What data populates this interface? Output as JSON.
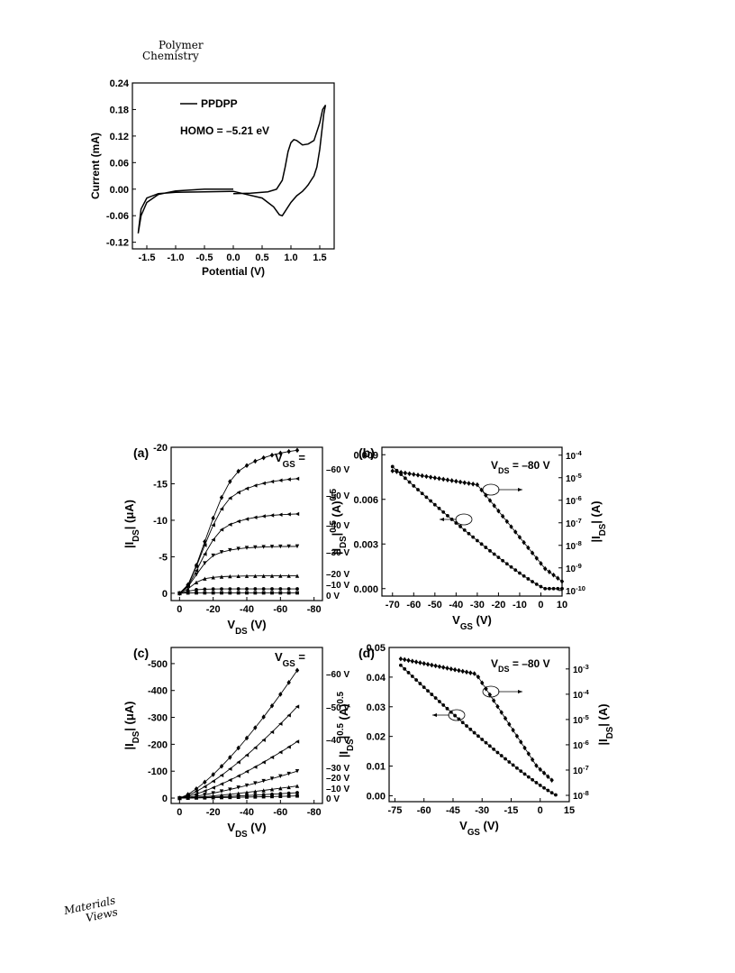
{
  "journal": {
    "line1": "Polymer",
    "line2": "Chemistry"
  },
  "footer_logo": {
    "line1": "Materials",
    "line2": "Views"
  },
  "chart_data": [
    {
      "id": "cv",
      "type": "line",
      "title": "",
      "xlabel": "Potential (V)",
      "ylabel": "Current (mA)",
      "xlim": [
        -1.75,
        1.75
      ],
      "ylim": [
        -0.135,
        0.24
      ],
      "xticks": [
        -1.5,
        -1.0,
        -0.5,
        0.0,
        0.5,
        1.0,
        1.5
      ],
      "xtick_labels": [
        "-1.5",
        "-1.0",
        "-0.5",
        "0.0",
        "0.5",
        "1.0",
        "1.5"
      ],
      "yticks": [
        0.24,
        0.18,
        0.12,
        0.06,
        0.0,
        -0.06,
        -0.12
      ],
      "ytick_labels": [
        "0.24",
        "0.18",
        "0.12",
        "0.06",
        "0.00",
        "-0.06",
        "-0.12"
      ],
      "legend": [
        "PPDPP"
      ],
      "annotation": "HOMO = –5.21 eV",
      "series": [
        {
          "name": "PPDPP",
          "x": [
            0.0,
            0.3,
            0.6,
            0.75,
            0.85,
            0.9,
            0.95,
            1.0,
            1.05,
            1.1,
            1.2,
            1.3,
            1.4,
            1.5,
            1.55,
            1.6,
            1.57,
            1.5,
            1.45,
            1.4,
            1.35,
            1.3,
            1.25,
            1.2,
            1.1,
            1.0,
            0.9,
            0.85,
            0.8,
            0.7,
            0.5,
            0.0,
            -0.5,
            -1.0,
            -1.3,
            -1.5,
            -1.6,
            -1.65,
            -1.6,
            -1.5,
            -1.3,
            -1.0,
            -0.5,
            0.0
          ],
          "y": [
            -0.01,
            -0.009,
            -0.006,
            0.0,
            0.02,
            0.05,
            0.085,
            0.105,
            0.112,
            0.11,
            0.1,
            0.102,
            0.11,
            0.15,
            0.18,
            0.19,
            0.17,
            0.09,
            0.05,
            0.03,
            0.02,
            0.01,
            0.002,
            -0.005,
            -0.015,
            -0.03,
            -0.05,
            -0.06,
            -0.058,
            -0.04,
            -0.02,
            -0.005,
            -0.006,
            -0.007,
            -0.01,
            -0.02,
            -0.045,
            -0.1,
            -0.06,
            -0.03,
            -0.012,
            -0.004,
            0.0,
            0.0
          ]
        }
      ]
    },
    {
      "id": "a",
      "panel": "(a)",
      "type": "line",
      "xlabel": "V_DS (V)",
      "ylabel": "|I_DS| (μA)",
      "xlim": [
        5,
        -85
      ],
      "ylim": [
        1,
        -20
      ],
      "xticks": [
        0,
        -20,
        -40,
        -60,
        -80
      ],
      "yticks": [
        0,
        -5,
        -10,
        -15,
        -20
      ],
      "legend_title": "V_GS =",
      "x": [
        0,
        -5,
        -10,
        -15,
        -20,
        -25,
        -30,
        -35,
        -40,
        -45,
        -50,
        -55,
        -60,
        -65,
        -70
      ],
      "series": [
        {
          "name": "-60 V",
          "isat": -16.9,
          "sat_v": 36
        },
        {
          "name": "-50 V",
          "isat": -13.4,
          "sat_v": 32
        },
        {
          "name": "-40 V",
          "isat": -9.2,
          "sat_v": 28
        },
        {
          "name": "-30 V",
          "isat": -5.4,
          "sat_v": 22
        },
        {
          "name": "-20 V",
          "isat": -2.0,
          "sat_v": 15
        },
        {
          "name": "-10 V",
          "isat": -0.5,
          "sat_v": 10
        },
        {
          "name": "0 V",
          "isat": -0.05,
          "sat_v": 5
        }
      ]
    },
    {
      "id": "b",
      "panel": "(b)",
      "type": "scatter",
      "annotation": "V_DS = –80 V",
      "xlabel": "V_GS (V)",
      "ylabel_left": "|I_DS|^0.5 (A)^0.5",
      "ylabel_right": "|I_DS| (A)",
      "xlim": [
        -75,
        10
      ],
      "ylim_left": [
        -0.0005,
        0.0095
      ],
      "yticks_left": [
        0.0,
        0.003,
        0.006,
        0.009
      ],
      "ytick_labels_left": [
        "0.000",
        "0.003",
        "0.006",
        "0.009"
      ],
      "xticks": [
        -70,
        -60,
        -50,
        -40,
        -30,
        -20,
        -10,
        0,
        10
      ],
      "y_right_log_range": [
        -10,
        -4
      ],
      "right_ticks": [
        "10-4",
        "10-5",
        "10-6",
        "10-7",
        "10-8",
        "10-9",
        "10-10"
      ],
      "sqrt_series": {
        "x_start": -70,
        "x_end": 10,
        "step": 2,
        "y_start": 0.0082,
        "vth": 2
      },
      "log_series": {
        "x_start": -70,
        "x_end": 10,
        "step": 2,
        "log_start": -4.7,
        "log_end": -9.6
      }
    },
    {
      "id": "c",
      "panel": "(c)",
      "type": "line",
      "xlabel": "V_DS (V)",
      "ylabel": "|I_DS| (μA)",
      "xlim": [
        5,
        -85
      ],
      "ylim": [
        20,
        -560
      ],
      "xticks": [
        0,
        -20,
        -40,
        -60,
        -80
      ],
      "yticks": [
        0,
        -100,
        -200,
        -300,
        -400,
        -500
      ],
      "legend_title": "V_GS =",
      "x": [
        0,
        -5,
        -10,
        -15,
        -20,
        -25,
        -30,
        -35,
        -40,
        -45,
        -50,
        -55,
        -60,
        -65,
        -70
      ],
      "series": [
        {
          "name": "-60 V",
          "iend": -475
        },
        {
          "name": "-50 V",
          "iend": -340
        },
        {
          "name": "-40 V",
          "iend": -210
        },
        {
          "name": "-30 V",
          "iend": -100
        },
        {
          "name": "-20 V",
          "iend": -45
        },
        {
          "name": "-10 V",
          "iend": -20
        },
        {
          "name": "0 V",
          "iend": -8
        }
      ]
    },
    {
      "id": "d",
      "panel": "(d)",
      "type": "scatter",
      "annotation": "V_DS = –80 V",
      "xlabel": "V_GS (V)",
      "ylabel_left": "|I_DS|^0.5 (A)^0.5",
      "ylabel_right": "|I_DS| (A)",
      "xlim": [
        -78,
        15
      ],
      "ylim_left": [
        -0.002,
        0.05
      ],
      "yticks_left": [
        0.0,
        0.01,
        0.02,
        0.03,
        0.04,
        0.05
      ],
      "ytick_labels_left": [
        "0.00",
        "0.01",
        "0.02",
        "0.03",
        "0.04",
        "0.05"
      ],
      "xticks": [
        -75,
        -60,
        -45,
        -30,
        -15,
        0,
        15
      ],
      "y_right_log_range": [
        -8,
        -2.5
      ],
      "right_ticks": [
        "10-3",
        "10-4",
        "10-5",
        "10-6",
        "10-7",
        "10-8"
      ],
      "sqrt_series": {
        "x_start": -72,
        "x_end": 9,
        "step": 2,
        "y_start": 0.044,
        "vth": 9
      },
      "log_series": {
        "x_start": -72,
        "x_end": 6,
        "step": 2,
        "log_start": -2.6,
        "log_end": -7.4
      }
    }
  ]
}
